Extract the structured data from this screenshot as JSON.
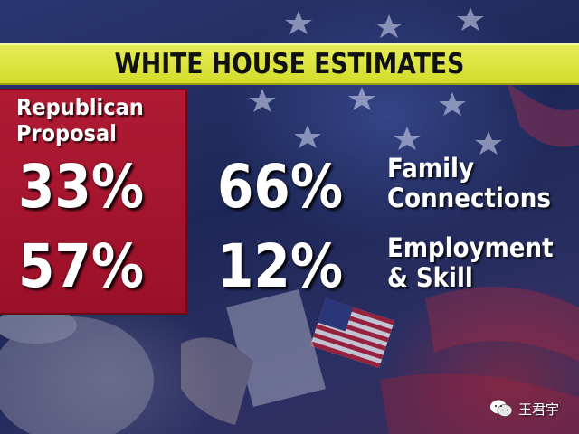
{
  "title": "WHITE HOUSE ESTIMATES",
  "proposal_label_lines": [
    "Republican",
    "Proposal"
  ],
  "rows": [
    {
      "proposal_value": "33%",
      "current_value": "66%",
      "category_lines": [
        "Family",
        "Connections"
      ]
    },
    {
      "proposal_value": "57%",
      "current_value": "12%",
      "category_lines": [
        "Employment",
        "& Skill"
      ]
    }
  ],
  "watermark": {
    "text": "王君宇",
    "icon": "wechat-icon"
  },
  "colors": {
    "title_band": "#dfe53f",
    "proposal_box": "#a8162f",
    "text": "#ffffff",
    "background": "#1f2a5c"
  }
}
